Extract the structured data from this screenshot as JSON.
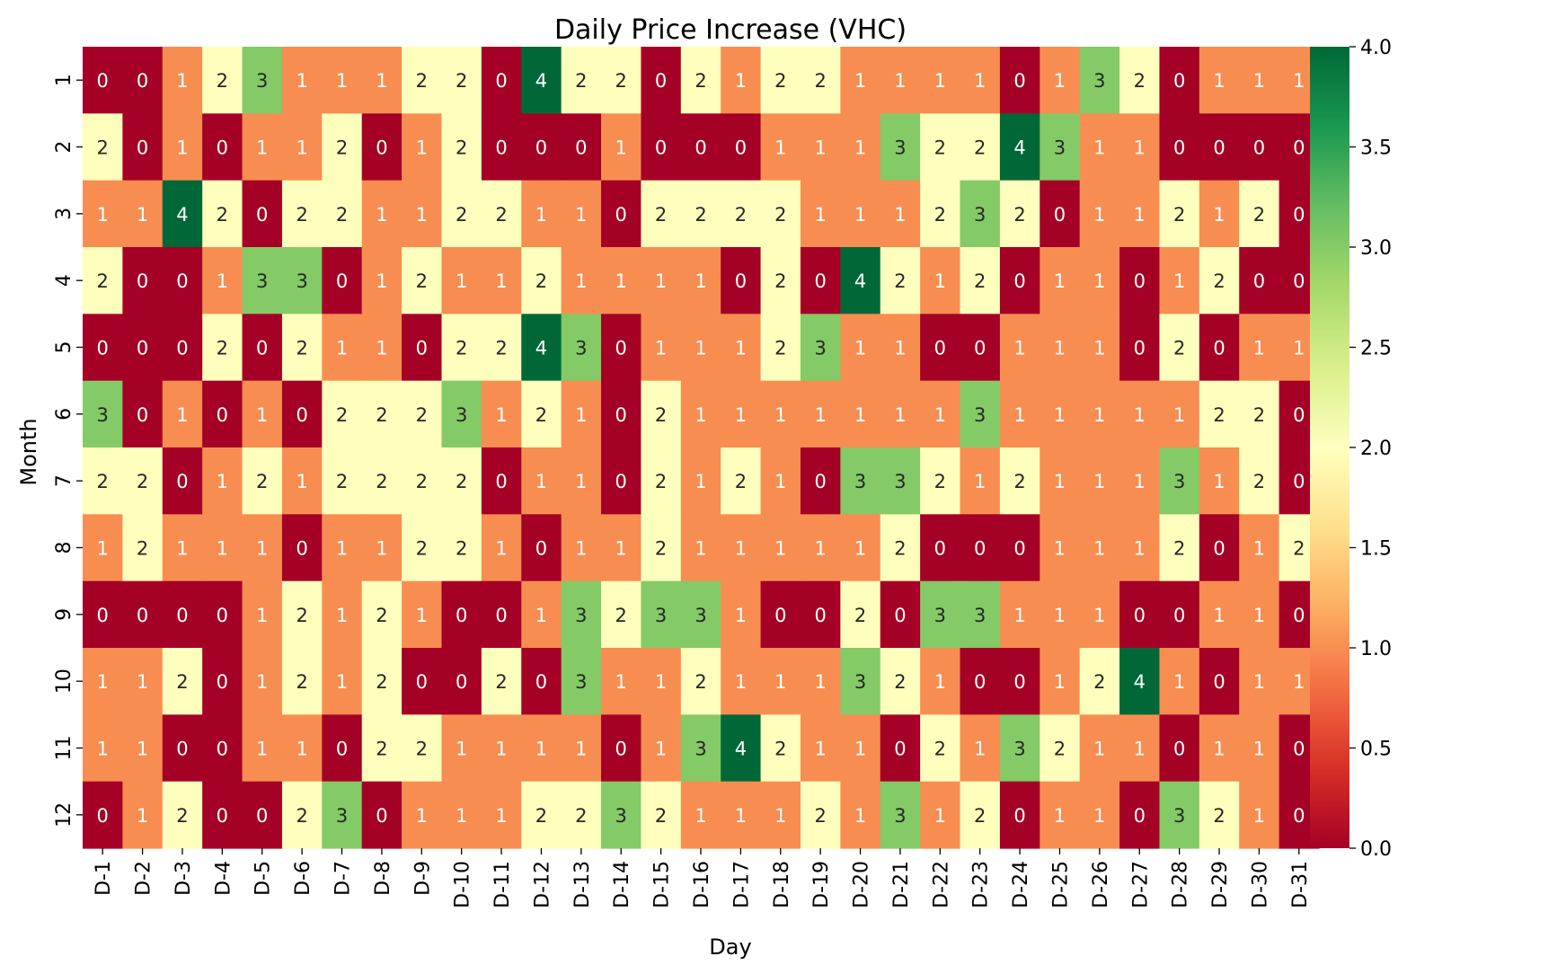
{
  "chart_data": {
    "type": "heatmap",
    "title": "Daily Price Increase (VHC)",
    "xlabel": "Day",
    "ylabel": "Month",
    "x_categories": [
      "D-1",
      "D-2",
      "D-3",
      "D-4",
      "D-5",
      "D-6",
      "D-7",
      "D-8",
      "D-9",
      "D-10",
      "D-11",
      "D-12",
      "D-13",
      "D-14",
      "D-15",
      "D-16",
      "D-17",
      "D-18",
      "D-19",
      "D-20",
      "D-21",
      "D-22",
      "D-23",
      "D-24",
      "D-25",
      "D-26",
      "D-27",
      "D-28",
      "D-29",
      "D-30",
      "D-31"
    ],
    "y_categories": [
      "1",
      "2",
      "3",
      "4",
      "5",
      "6",
      "7",
      "8",
      "9",
      "10",
      "11",
      "12"
    ],
    "values": [
      [
        0,
        0,
        1,
        2,
        3,
        1,
        1,
        1,
        2,
        2,
        0,
        4,
        2,
        2,
        0,
        2,
        1,
        2,
        2,
        1,
        1,
        1,
        1,
        0,
        1,
        3,
        2,
        0,
        1,
        1,
        1
      ],
      [
        2,
        0,
        1,
        0,
        1,
        1,
        2,
        0,
        1,
        2,
        0,
        0,
        0,
        1,
        0,
        0,
        0,
        1,
        1,
        1,
        3,
        2,
        2,
        4,
        3,
        1,
        1,
        0,
        0,
        0,
        0
      ],
      [
        1,
        1,
        4,
        2,
        0,
        2,
        2,
        1,
        1,
        2,
        2,
        1,
        1,
        0,
        2,
        2,
        2,
        2,
        1,
        1,
        1,
        2,
        3,
        2,
        0,
        1,
        1,
        2,
        1,
        2,
        0
      ],
      [
        2,
        0,
        0,
        1,
        3,
        3,
        0,
        1,
        2,
        1,
        1,
        2,
        1,
        1,
        1,
        1,
        0,
        2,
        0,
        4,
        2,
        1,
        2,
        0,
        1,
        1,
        0,
        1,
        2,
        0,
        0
      ],
      [
        0,
        0,
        0,
        2,
        0,
        2,
        1,
        1,
        0,
        2,
        2,
        4,
        3,
        0,
        1,
        1,
        1,
        2,
        3,
        1,
        1,
        0,
        0,
        1,
        1,
        1,
        0,
        2,
        0,
        1,
        1
      ],
      [
        3,
        0,
        1,
        0,
        1,
        0,
        2,
        2,
        2,
        3,
        1,
        2,
        1,
        0,
        2,
        1,
        1,
        1,
        1,
        1,
        1,
        1,
        3,
        1,
        1,
        1,
        1,
        1,
        2,
        2,
        0
      ],
      [
        2,
        2,
        0,
        1,
        2,
        1,
        2,
        2,
        2,
        2,
        0,
        1,
        1,
        0,
        2,
        1,
        2,
        1,
        0,
        3,
        3,
        2,
        1,
        2,
        1,
        1,
        1,
        3,
        1,
        2,
        0
      ],
      [
        1,
        2,
        1,
        1,
        1,
        0,
        1,
        1,
        2,
        2,
        1,
        0,
        1,
        1,
        2,
        1,
        1,
        1,
        1,
        1,
        2,
        0,
        0,
        0,
        1,
        1,
        1,
        2,
        0,
        1,
        2
      ],
      [
        0,
        0,
        0,
        0,
        1,
        2,
        1,
        2,
        1,
        0,
        0,
        1,
        3,
        2,
        3,
        3,
        1,
        0,
        0,
        2,
        0,
        3,
        3,
        1,
        1,
        1,
        0,
        0,
        1,
        1,
        0
      ],
      [
        1,
        1,
        2,
        0,
        1,
        2,
        1,
        2,
        0,
        0,
        2,
        0,
        3,
        1,
        1,
        2,
        1,
        1,
        1,
        3,
        2,
        1,
        0,
        0,
        1,
        2,
        4,
        1,
        0,
        1,
        1
      ],
      [
        1,
        1,
        0,
        0,
        1,
        1,
        0,
        2,
        2,
        1,
        1,
        1,
        1,
        0,
        1,
        3,
        4,
        2,
        1,
        1,
        0,
        2,
        1,
        3,
        2,
        1,
        1,
        0,
        1,
        1,
        0
      ],
      [
        0,
        1,
        2,
        0,
        0,
        2,
        3,
        0,
        1,
        1,
        1,
        2,
        2,
        3,
        2,
        1,
        1,
        1,
        2,
        1,
        3,
        1,
        2,
        0,
        1,
        1,
        0,
        3,
        2,
        1,
        0
      ]
    ],
    "colormap": "RdYlGn",
    "color_stops": {
      "0": "#a50026",
      "1": "#f88d52",
      "2": "#fefebd",
      "3": "#84ca66",
      "4": "#006837"
    },
    "vmin": 0,
    "vmax": 4,
    "colorbar_ticks": [
      "0.0",
      "0.5",
      "1.0",
      "1.5",
      "2.0",
      "2.5",
      "3.0",
      "3.5",
      "4.0"
    ],
    "annotated": true
  }
}
